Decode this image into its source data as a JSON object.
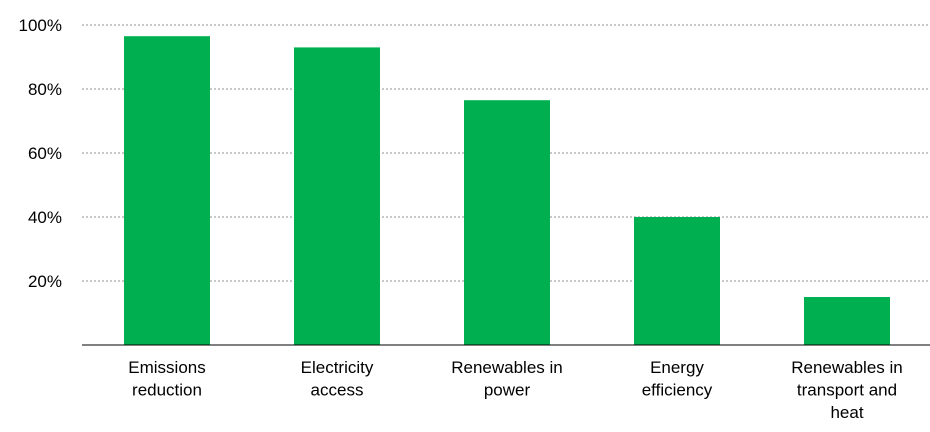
{
  "chart_data": {
    "type": "bar",
    "title": "",
    "xlabel": "",
    "ylabel": "",
    "categories": [
      [
        "Emissions",
        "reduction"
      ],
      [
        "Electricity",
        "access"
      ],
      [
        "Renewables in",
        "power"
      ],
      [
        "Energy",
        "efficiency"
      ],
      [
        "Renewables in",
        "transport and",
        "heat"
      ]
    ],
    "values": [
      0.965,
      0.93,
      0.765,
      0.4,
      0.15
    ],
    "ylim": [
      0,
      1.0
    ],
    "yticks": [
      {
        "value": 0.2,
        "label": "20%"
      },
      {
        "value": 0.4,
        "label": "40%"
      },
      {
        "value": 0.6,
        "label": "60%"
      },
      {
        "value": 0.8,
        "label": "80%"
      },
      {
        "value": 1.0,
        "label": "100%"
      }
    ],
    "grid": true,
    "bar_color": "#00b050",
    "grid_color": "#a6a6a6",
    "axis_color": "#000000"
  }
}
